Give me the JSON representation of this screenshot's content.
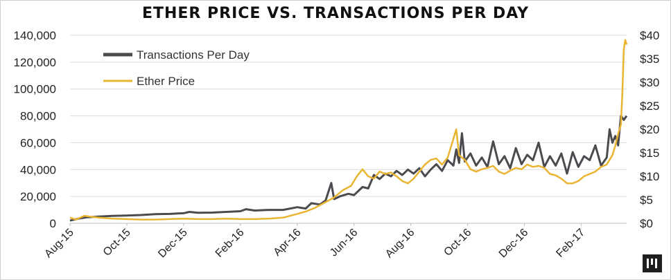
{
  "chart_data": {
    "type": "line",
    "title": "ETHER PRICE VS. TRANSACTIONS PER DAY",
    "xlabel": "",
    "ylabel": "",
    "x_tick_labels": [
      "Aug-15",
      "Oct-15",
      "Dec-15",
      "Feb-16",
      "Apr-16",
      "Jun-16",
      "Aug-16",
      "Oct-16",
      "Dec-16",
      "Feb-17"
    ],
    "x_range_months": [
      0,
      19.6
    ],
    "y_left": {
      "min": 0,
      "max": 140000,
      "step": 20000,
      "tick_labels": [
        "0",
        "20,000",
        "40,000",
        "60,000",
        "80,000",
        "100,000",
        "120,000",
        "140,000"
      ]
    },
    "y_right": {
      "min": 0,
      "max": 40,
      "step": 5,
      "tick_labels": [
        "$0",
        "$5",
        "$10",
        "$15",
        "$20",
        "$25",
        "$30",
        "$35",
        "$40"
      ]
    },
    "legend_position": "top-left",
    "series": [
      {
        "name": "Transactions Per Day",
        "axis": "left",
        "color": "#4a4a4f",
        "points": [
          [
            0,
            2000
          ],
          [
            0.3,
            3500
          ],
          [
            0.6,
            4500
          ],
          [
            1.0,
            5000
          ],
          [
            1.5,
            5500
          ],
          [
            2.0,
            5800
          ],
          [
            2.5,
            6200
          ],
          [
            3.0,
            6800
          ],
          [
            3.5,
            7000
          ],
          [
            4.0,
            7500
          ],
          [
            4.2,
            8500
          ],
          [
            4.5,
            7800
          ],
          [
            5.0,
            8000
          ],
          [
            5.5,
            8500
          ],
          [
            6.0,
            9000
          ],
          [
            6.2,
            10500
          ],
          [
            6.5,
            9500
          ],
          [
            7.0,
            10000
          ],
          [
            7.5,
            10000
          ],
          [
            8.0,
            12000
          ],
          [
            8.3,
            11000
          ],
          [
            8.5,
            15000
          ],
          [
            8.8,
            14000
          ],
          [
            9.0,
            17000
          ],
          [
            9.2,
            30000
          ],
          [
            9.3,
            18000
          ],
          [
            9.5,
            20000
          ],
          [
            9.8,
            22000
          ],
          [
            10.0,
            21000
          ],
          [
            10.3,
            27000
          ],
          [
            10.5,
            26000
          ],
          [
            10.7,
            36000
          ],
          [
            10.9,
            33000
          ],
          [
            11.1,
            37000
          ],
          [
            11.3,
            35000
          ],
          [
            11.5,
            39000
          ],
          [
            11.7,
            36000
          ],
          [
            11.9,
            40000
          ],
          [
            12.1,
            37000
          ],
          [
            12.3,
            41000
          ],
          [
            12.5,
            35000
          ],
          [
            12.7,
            40000
          ],
          [
            12.9,
            44000
          ],
          [
            13.1,
            39000
          ],
          [
            13.3,
            47000
          ],
          [
            13.5,
            43000
          ],
          [
            13.6,
            55000
          ],
          [
            13.7,
            45000
          ],
          [
            13.8,
            67000
          ],
          [
            13.9,
            46000
          ],
          [
            14.1,
            52000
          ],
          [
            14.3,
            43000
          ],
          [
            14.5,
            49000
          ],
          [
            14.7,
            42000
          ],
          [
            14.9,
            61000
          ],
          [
            15.1,
            44000
          ],
          [
            15.3,
            50000
          ],
          [
            15.5,
            41000
          ],
          [
            15.7,
            56000
          ],
          [
            15.9,
            44000
          ],
          [
            16.1,
            51000
          ],
          [
            16.3,
            47000
          ],
          [
            16.5,
            60000
          ],
          [
            16.7,
            42000
          ],
          [
            16.9,
            50000
          ],
          [
            17.1,
            43000
          ],
          [
            17.3,
            52000
          ],
          [
            17.5,
            37000
          ],
          [
            17.7,
            53000
          ],
          [
            17.9,
            42000
          ],
          [
            18.1,
            50000
          ],
          [
            18.3,
            47000
          ],
          [
            18.5,
            58000
          ],
          [
            18.7,
            43000
          ],
          [
            18.9,
            49000
          ],
          [
            19.0,
            70000
          ],
          [
            19.1,
            60000
          ],
          [
            19.2,
            65000
          ],
          [
            19.3,
            58000
          ],
          [
            19.4,
            80000
          ],
          [
            19.5,
            77000
          ],
          [
            19.6,
            80000
          ]
        ]
      },
      {
        "name": "Ether Price",
        "axis": "right",
        "color": "#e9b531",
        "points": [
          [
            0,
            1.2
          ],
          [
            0.2,
            0.8
          ],
          [
            0.5,
            1.6
          ],
          [
            1.0,
            1.2
          ],
          [
            1.5,
            1.0
          ],
          [
            2.0,
            0.9
          ],
          [
            2.5,
            0.8
          ],
          [
            3.0,
            0.8
          ],
          [
            3.5,
            0.9
          ],
          [
            4.0,
            1.0
          ],
          [
            4.5,
            0.9
          ],
          [
            5.0,
            0.9
          ],
          [
            5.5,
            1.0
          ],
          [
            6.0,
            0.9
          ],
          [
            6.5,
            0.9
          ],
          [
            7.0,
            1.0
          ],
          [
            7.5,
            1.2
          ],
          [
            8.0,
            2.0
          ],
          [
            8.3,
            2.5
          ],
          [
            8.6,
            3.2
          ],
          [
            9.0,
            4.5
          ],
          [
            9.3,
            5.5
          ],
          [
            9.6,
            7.0
          ],
          [
            9.9,
            8.0
          ],
          [
            10.1,
            10.0
          ],
          [
            10.3,
            11.5
          ],
          [
            10.5,
            10.0
          ],
          [
            10.7,
            9.5
          ],
          [
            10.9,
            11.0
          ],
          [
            11.1,
            10.5
          ],
          [
            11.3,
            10.8
          ],
          [
            11.5,
            10.0
          ],
          [
            11.7,
            9.0
          ],
          [
            11.9,
            8.5
          ],
          [
            12.1,
            9.5
          ],
          [
            12.3,
            11.0
          ],
          [
            12.5,
            12.5
          ],
          [
            12.7,
            13.5
          ],
          [
            12.9,
            13.8
          ],
          [
            13.1,
            12.5
          ],
          [
            13.3,
            14.0
          ],
          [
            13.5,
            18.0
          ],
          [
            13.6,
            20.0
          ],
          [
            13.7,
            14.5
          ],
          [
            13.9,
            13.5
          ],
          [
            14.1,
            11.5
          ],
          [
            14.3,
            11.0
          ],
          [
            14.5,
            11.5
          ],
          [
            14.7,
            11.8
          ],
          [
            14.9,
            12.2
          ],
          [
            15.1,
            11.0
          ],
          [
            15.3,
            10.5
          ],
          [
            15.5,
            11.2
          ],
          [
            15.7,
            11.8
          ],
          [
            15.9,
            11.5
          ],
          [
            16.1,
            12.5
          ],
          [
            16.3,
            12.0
          ],
          [
            16.5,
            12.2
          ],
          [
            16.7,
            11.8
          ],
          [
            16.9,
            10.5
          ],
          [
            17.1,
            10.2
          ],
          [
            17.3,
            9.5
          ],
          [
            17.5,
            8.5
          ],
          [
            17.7,
            8.5
          ],
          [
            17.9,
            9.0
          ],
          [
            18.1,
            10.0
          ],
          [
            18.3,
            10.5
          ],
          [
            18.5,
            11.0
          ],
          [
            18.7,
            12.0
          ],
          [
            18.9,
            12.5
          ],
          [
            19.1,
            14.5
          ],
          [
            19.2,
            16.5
          ],
          [
            19.3,
            19.0
          ],
          [
            19.4,
            21.0
          ],
          [
            19.45,
            28.0
          ],
          [
            19.5,
            37.0
          ],
          [
            19.55,
            39.0
          ],
          [
            19.6,
            38.0
          ]
        ]
      }
    ]
  },
  "logo": {
    "name": "pantera-logo",
    "color": "#1f1f1f"
  }
}
